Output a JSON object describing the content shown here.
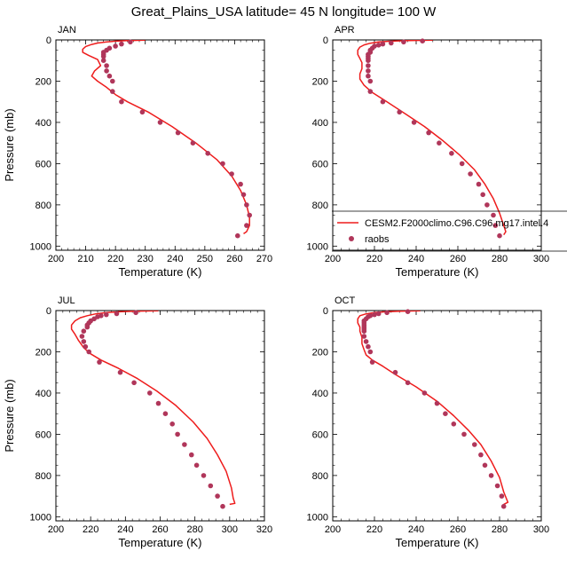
{
  "title": "Great_Plains_USA  latitude= 45 N longitude= 100 W",
  "legend": {
    "model_label": "CESM2.F2000climo.C96.C96.mg17.intel.4",
    "obs_label": "raobs",
    "model_color": "#ee1c1c",
    "obs_color": "#b0365a"
  },
  "chart_data": [
    {
      "type": "line",
      "panel": "JAN",
      "xlabel": "Temperature (K)",
      "ylabel": "Pressure (mb)",
      "xlim": [
        200,
        270
      ],
      "ylim": [
        0,
        1020
      ],
      "y_inverted": true,
      "xticks": [
        200,
        210,
        220,
        230,
        240,
        250,
        260,
        270
      ],
      "yticks": [
        0,
        200,
        400,
        600,
        800,
        1000
      ],
      "series": [
        {
          "name": "CESM2.F2000climo.C96.C96.mg17.intel.4",
          "kind": "line",
          "points": [
            [
              230,
              1
            ],
            [
              224,
              3
            ],
            [
              220,
              6
            ],
            [
              217,
              10
            ],
            [
              214,
              15
            ],
            [
              212,
              22
            ],
            [
              210,
              32
            ],
            [
              209,
              45
            ],
            [
              209,
              60
            ],
            [
              211,
              75
            ],
            [
              214,
              95
            ],
            [
              215,
              125
            ],
            [
              213,
              150
            ],
            [
              212,
              175
            ],
            [
              214,
              200
            ],
            [
              217,
              230
            ],
            [
              220,
              265
            ],
            [
              224,
              300
            ],
            [
              231,
              350
            ],
            [
              239,
              420
            ],
            [
              247,
              500
            ],
            [
              254,
              580
            ],
            [
              259,
              660
            ],
            [
              262,
              730
            ],
            [
              264,
              800
            ],
            [
              265,
              860
            ],
            [
              265,
              900
            ],
            [
              264,
              930
            ],
            [
              263,
              940
            ]
          ]
        },
        {
          "name": "raobs",
          "kind": "points",
          "points": [
            [
              225,
              10
            ],
            [
              222,
              20
            ],
            [
              220,
              30
            ],
            [
              218,
              40
            ],
            [
              217,
              50
            ],
            [
              216,
              60
            ],
            [
              216,
              70
            ],
            [
              216,
              80
            ],
            [
              216,
              100
            ],
            [
              217,
              125
            ],
            [
              217,
              150
            ],
            [
              218,
              175
            ],
            [
              219,
              200
            ],
            [
              219,
              250
            ],
            [
              222,
              300
            ],
            [
              229,
              350
            ],
            [
              235,
              400
            ],
            [
              241,
              450
            ],
            [
              246,
              500
            ],
            [
              251,
              550
            ],
            [
              256,
              600
            ],
            [
              259,
              650
            ],
            [
              262,
              700
            ],
            [
              263,
              750
            ],
            [
              264,
              800
            ],
            [
              265,
              850
            ],
            [
              264,
              900
            ],
            [
              261,
              950
            ]
          ]
        }
      ]
    },
    {
      "type": "line",
      "panel": "APR",
      "xlabel": "Temperature (K)",
      "ylabel": "",
      "xlim": [
        200,
        300
      ],
      "ylim": [
        0,
        1020
      ],
      "y_inverted": true,
      "xticks": [
        200,
        220,
        240,
        260,
        280,
        300
      ],
      "yticks": [
        0,
        200,
        400,
        600,
        800,
        1000
      ],
      "series": [
        {
          "name": "CESM2.F2000climo.C96.C96.mg17.intel.4",
          "kind": "line",
          "points": [
            [
              248,
              1
            ],
            [
              236,
              3
            ],
            [
              228,
              6
            ],
            [
              222,
              10
            ],
            [
              218,
              16
            ],
            [
              215,
              24
            ],
            [
              213,
              35
            ],
            [
              212,
              50
            ],
            [
              212,
              70
            ],
            [
              213,
              90
            ],
            [
              214,
              110
            ],
            [
              214,
              140
            ],
            [
              213,
              165
            ],
            [
              213,
              190
            ],
            [
              215,
              220
            ],
            [
              219,
              255
            ],
            [
              226,
              300
            ],
            [
              235,
              360
            ],
            [
              244,
              420
            ],
            [
              253,
              490
            ],
            [
              261,
              560
            ],
            [
              268,
              630
            ],
            [
              273,
              700
            ],
            [
              277,
              770
            ],
            [
              280,
              840
            ],
            [
              282,
              900
            ],
            [
              283,
              930
            ],
            [
              282,
              945
            ]
          ]
        },
        {
          "name": "raobs",
          "kind": "points",
          "points": [
            [
              243,
              5
            ],
            [
              234,
              10
            ],
            [
              228,
              15
            ],
            [
              224,
              20
            ],
            [
              222,
              25
            ],
            [
              220,
              30
            ],
            [
              219,
              40
            ],
            [
              218,
              50
            ],
            [
              218,
              60
            ],
            [
              217,
              70
            ],
            [
              217,
              80
            ],
            [
              217,
              90
            ],
            [
              217,
              100
            ],
            [
              217,
              125
            ],
            [
              217,
              150
            ],
            [
              217,
              175
            ],
            [
              218,
              200
            ],
            [
              218,
              250
            ],
            [
              224,
              300
            ],
            [
              232,
              350
            ],
            [
              239,
              400
            ],
            [
              246,
              450
            ],
            [
              251,
              500
            ],
            [
              257,
              550
            ],
            [
              262,
              600
            ],
            [
              266,
              650
            ],
            [
              270,
              700
            ],
            [
              272,
              750
            ],
            [
              274,
              800
            ],
            [
              277,
              850
            ],
            [
              278,
              900
            ],
            [
              280,
              950
            ]
          ]
        }
      ]
    },
    {
      "type": "line",
      "panel": "JUL",
      "xlabel": "Temperature (K)",
      "ylabel": "Pressure (mb)",
      "xlim": [
        200,
        320
      ],
      "ylim": [
        0,
        1020
      ],
      "y_inverted": true,
      "xticks": [
        200,
        220,
        240,
        260,
        280,
        300,
        320
      ],
      "yticks": [
        0,
        200,
        400,
        600,
        800,
        1000
      ],
      "series": [
        {
          "name": "CESM2.F2000climo.C96.C96.mg17.intel.4",
          "kind": "line",
          "points": [
            [
              259,
              1
            ],
            [
              245,
              3
            ],
            [
              236,
              6
            ],
            [
              229,
              10
            ],
            [
              223,
              16
            ],
            [
              218,
              25
            ],
            [
              214,
              35
            ],
            [
              211,
              50
            ],
            [
              209,
              70
            ],
            [
              209,
              90
            ],
            [
              211,
              115
            ],
            [
              213,
              145
            ],
            [
              216,
              180
            ],
            [
              220,
              210
            ],
            [
              226,
              240
            ],
            [
              236,
              280
            ],
            [
              247,
              330
            ],
            [
              258,
              390
            ],
            [
              269,
              460
            ],
            [
              279,
              540
            ],
            [
              287,
              620
            ],
            [
              293,
              700
            ],
            [
              298,
              780
            ],
            [
              301,
              860
            ],
            [
              302,
              910
            ],
            [
              303,
              935
            ],
            [
              300,
              940
            ]
          ]
        },
        {
          "name": "raobs",
          "kind": "points",
          "points": [
            [
              246,
              10
            ],
            [
              235,
              15
            ],
            [
              229,
              20
            ],
            [
              226,
              25
            ],
            [
              224,
              30
            ],
            [
              222,
              40
            ],
            [
              220,
              50
            ],
            [
              219,
              60
            ],
            [
              218,
              70
            ],
            [
              218,
              80
            ],
            [
              216,
              100
            ],
            [
              215,
              125
            ],
            [
              216,
              150
            ],
            [
              217,
              175
            ],
            [
              219,
              200
            ],
            [
              225,
              250
            ],
            [
              237,
              300
            ],
            [
              245,
              350
            ],
            [
              254,
              400
            ],
            [
              259,
              450
            ],
            [
              263,
              500
            ],
            [
              267,
              550
            ],
            [
              270,
              600
            ],
            [
              274,
              650
            ],
            [
              278,
              700
            ],
            [
              281,
              750
            ],
            [
              285,
              800
            ],
            [
              289,
              850
            ],
            [
              293,
              900
            ],
            [
              296,
              950
            ]
          ]
        }
      ]
    },
    {
      "type": "line",
      "panel": "OCT",
      "xlabel": "Temperature (K)",
      "ylabel": "",
      "xlim": [
        200,
        300
      ],
      "ylim": [
        0,
        1020
      ],
      "y_inverted": true,
      "xticks": [
        200,
        220,
        240,
        260,
        280,
        300
      ],
      "yticks": [
        0,
        200,
        400,
        600,
        800,
        1000
      ],
      "series": [
        {
          "name": "CESM2.F2000climo.C96.C96.mg17.intel.4",
          "kind": "line",
          "points": [
            [
              242,
              1
            ],
            [
              232,
              3
            ],
            [
              225,
              6
            ],
            [
              220,
              10
            ],
            [
              216,
              16
            ],
            [
              213,
              25
            ],
            [
              212,
              40
            ],
            [
              212,
              60
            ],
            [
              213,
              80
            ],
            [
              213,
              100
            ],
            [
              214,
              130
            ],
            [
              214,
              160
            ],
            [
              215,
              190
            ],
            [
              216,
              215
            ],
            [
              219,
              240
            ],
            [
              224,
              270
            ],
            [
              230,
              310
            ],
            [
              240,
              370
            ],
            [
              250,
              440
            ],
            [
              258,
              510
            ],
            [
              265,
              580
            ],
            [
              271,
              650
            ],
            [
              276,
              730
            ],
            [
              280,
              810
            ],
            [
              282,
              880
            ],
            [
              284,
              930
            ],
            [
              282,
              940
            ]
          ]
        },
        {
          "name": "raobs",
          "kind": "points",
          "points": [
            [
              236,
              5
            ],
            [
              226,
              10
            ],
            [
              222,
              15
            ],
            [
              220,
              20
            ],
            [
              218,
              25
            ],
            [
              217,
              30
            ],
            [
              216,
              40
            ],
            [
              215,
              50
            ],
            [
              215,
              60
            ],
            [
              215,
              70
            ],
            [
              215,
              80
            ],
            [
              215,
              90
            ],
            [
              215,
              100
            ],
            [
              215,
              125
            ],
            [
              216,
              150
            ],
            [
              217,
              175
            ],
            [
              218,
              200
            ],
            [
              219,
              250
            ],
            [
              230,
              300
            ],
            [
              236,
              350
            ],
            [
              244,
              400
            ],
            [
              250,
              450
            ],
            [
              254,
              500
            ],
            [
              258,
              550
            ],
            [
              263,
              600
            ],
            [
              268,
              650
            ],
            [
              271,
              700
            ],
            [
              273,
              750
            ],
            [
              276,
              800
            ],
            [
              279,
              850
            ],
            [
              281,
              900
            ],
            [
              282,
              950
            ]
          ]
        }
      ]
    }
  ]
}
